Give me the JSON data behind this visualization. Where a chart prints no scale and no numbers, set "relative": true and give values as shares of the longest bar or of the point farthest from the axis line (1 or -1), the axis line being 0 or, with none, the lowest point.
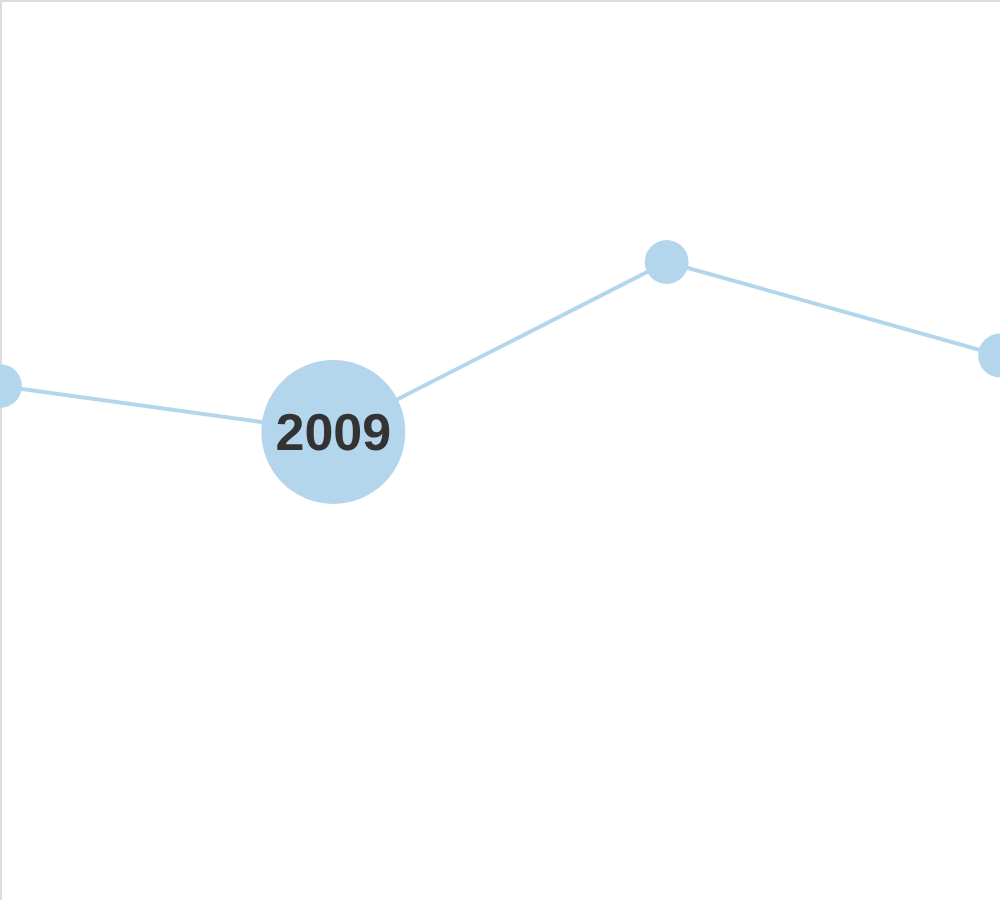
{
  "chart_data": {
    "type": "line",
    "categories": [
      null,
      null,
      null,
      null
    ],
    "values": [
      0.27,
      0,
      1,
      0.45
    ],
    "relative": true,
    "color": "#b3d6ec",
    "marker": "circle",
    "annotations": [
      {
        "text": "2009",
        "y": 0
      }
    ]
  }
}
